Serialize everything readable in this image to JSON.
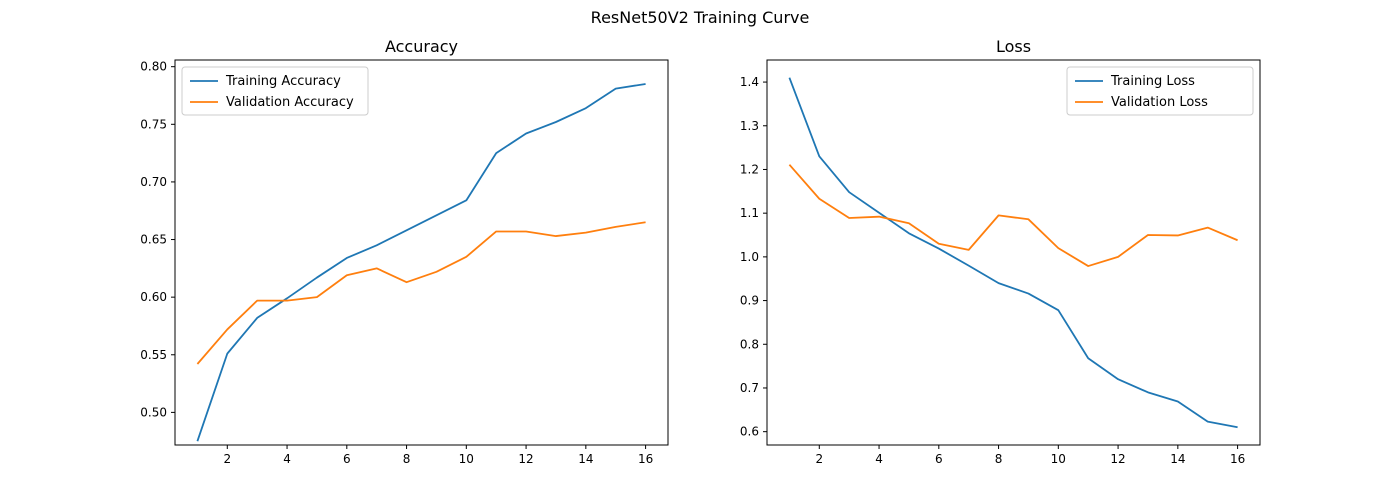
{
  "figure": {
    "suptitle": "ResNet50V2 Training Curve"
  },
  "chart_data": [
    {
      "type": "line",
      "title": "Accuracy",
      "xlabel": "",
      "ylabel": "",
      "xlim": [
        0.25,
        16.75
      ],
      "ylim": [
        0.4717,
        0.8058
      ],
      "xticks": [
        2,
        4,
        6,
        8,
        10,
        12,
        14,
        16
      ],
      "xtick_labels": [
        "2",
        "4",
        "6",
        "8",
        "10",
        "12",
        "14",
        "16"
      ],
      "yticks": [
        0.5,
        0.55,
        0.6,
        0.65,
        0.7,
        0.75,
        0.8
      ],
      "ytick_labels": [
        "0.50",
        "0.55",
        "0.60",
        "0.65",
        "0.70",
        "0.75",
        "0.80"
      ],
      "grid": false,
      "legend": "upper-left",
      "x": [
        1,
        2,
        3,
        4,
        5,
        6,
        7,
        8,
        9,
        10,
        11,
        12,
        13,
        14,
        15,
        16
      ],
      "series": [
        {
          "name": "Training Accuracy",
          "color": "#1f77b4",
          "values": [
            0.475,
            0.551,
            0.582,
            0.599,
            0.617,
            0.634,
            0.645,
            0.658,
            0.671,
            0.684,
            0.725,
            0.742,
            0.752,
            0.764,
            0.781,
            0.785
          ]
        },
        {
          "name": "Validation Accuracy",
          "color": "#ff7f0e",
          "values": [
            0.542,
            0.572,
            0.597,
            0.597,
            0.6,
            0.619,
            0.625,
            0.613,
            0.622,
            0.635,
            0.657,
            0.657,
            0.653,
            0.656,
            0.661,
            0.665
          ]
        }
      ]
    },
    {
      "type": "line",
      "title": "Loss",
      "xlabel": "",
      "ylabel": "",
      "xlim": [
        0.25,
        16.75
      ],
      "ylim": [
        0.5695,
        1.4505
      ],
      "xticks": [
        2,
        4,
        6,
        8,
        10,
        12,
        14,
        16
      ],
      "xtick_labels": [
        "2",
        "4",
        "6",
        "8",
        "10",
        "12",
        "14",
        "16"
      ],
      "yticks": [
        0.6,
        0.7,
        0.8,
        0.9,
        1.0,
        1.1,
        1.2,
        1.3,
        1.4
      ],
      "ytick_labels": [
        "0.6",
        "0.7",
        "0.8",
        "0.9",
        "1.0",
        "1.1",
        "1.2",
        "1.3",
        "1.4"
      ],
      "grid": false,
      "legend": "upper-right",
      "x": [
        1,
        2,
        3,
        4,
        5,
        6,
        7,
        8,
        9,
        10,
        11,
        12,
        13,
        14,
        15,
        16
      ],
      "series": [
        {
          "name": "Training Loss",
          "color": "#1f77b4",
          "values": [
            1.41,
            1.23,
            1.148,
            1.101,
            1.054,
            1.019,
            0.98,
            0.94,
            0.916,
            0.878,
            0.768,
            0.72,
            0.69,
            0.669,
            0.623,
            0.61
          ]
        },
        {
          "name": "Validation Loss",
          "color": "#ff7f0e",
          "values": [
            1.211,
            1.133,
            1.089,
            1.092,
            1.077,
            1.03,
            1.016,
            1.095,
            1.086,
            1.02,
            0.979,
            1.0,
            1.05,
            1.049,
            1.067,
            1.038
          ]
        }
      ]
    }
  ]
}
